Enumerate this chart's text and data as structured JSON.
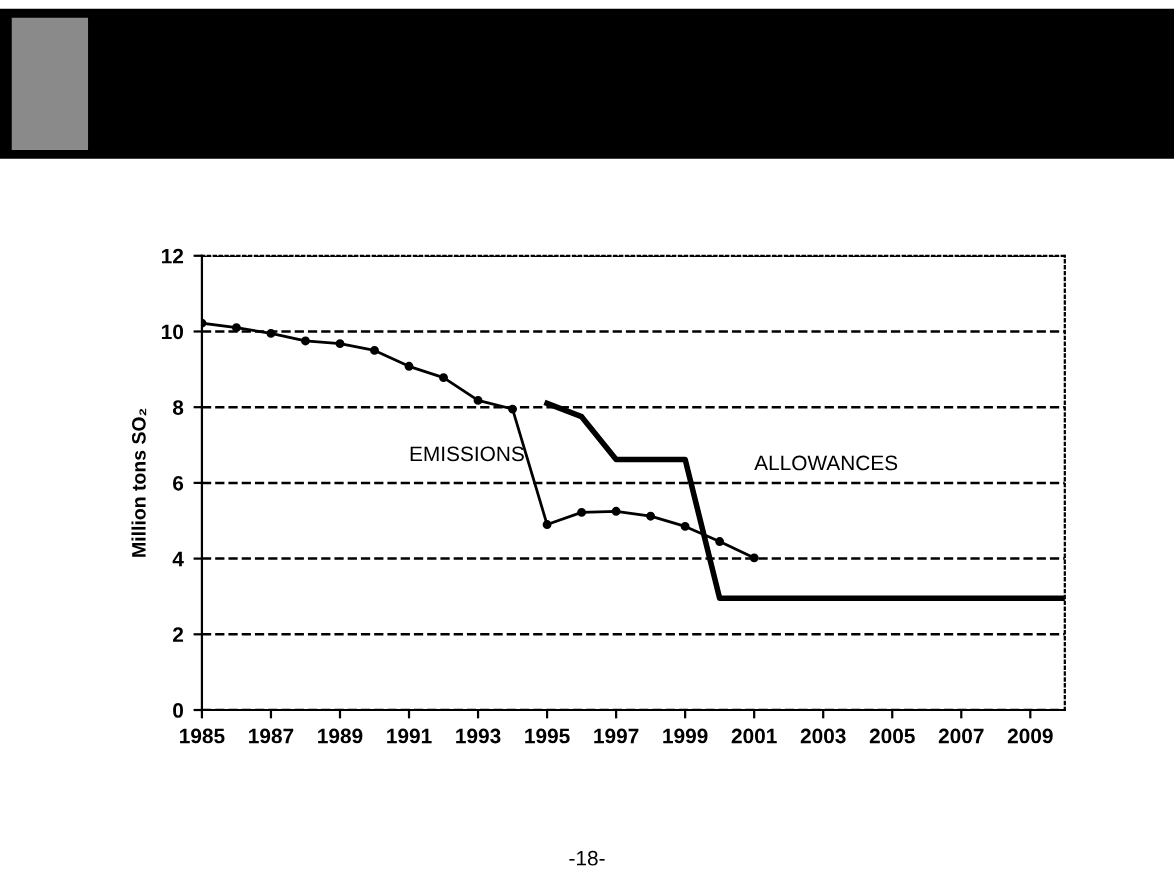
{
  "chart_data": {
    "type": "line",
    "ylabel": "Million tons SO₂",
    "annotations": [
      "EMISSIONS",
      "ALLOWANCES",
      "-18-"
    ],
    "series": [
      {
        "color": "#000000",
        "marker": "circle",
        "line_style": "solid",
        "x": [
          1985,
          1986,
          1987,
          1988,
          1989,
          1990,
          1991,
          1992,
          1993,
          1994,
          1995,
          1996,
          1997,
          1998,
          1999,
          2000,
          2001
        ],
        "values": [
          10.22,
          10.1,
          9.95,
          9.75,
          9.68,
          9.5,
          9.08,
          8.78,
          8.18,
          7.95,
          4.9,
          5.22,
          5.25,
          5.12,
          4.85,
          4.45,
          4.02
        ]
      },
      {
        "color": "#000000",
        "marker": "none",
        "line_style": "solid",
        "x": [
          1995,
          1996,
          1997,
          1999,
          2000,
          2010
        ],
        "values": [
          8.1,
          7.75,
          6.62,
          6.62,
          2.95,
          2.95
        ]
      }
    ],
    "xlim": [
      1985,
      2010
    ],
    "xticks": [
      1985,
      1987,
      1989,
      1991,
      1993,
      1995,
      1997,
      1999,
      2001,
      2003,
      2005,
      2007,
      2009
    ],
    "ylim": [
      0,
      12
    ],
    "yticks": [
      0,
      2,
      4,
      6,
      8,
      10,
      12
    ],
    "grid": "y",
    "legend": false
  }
}
